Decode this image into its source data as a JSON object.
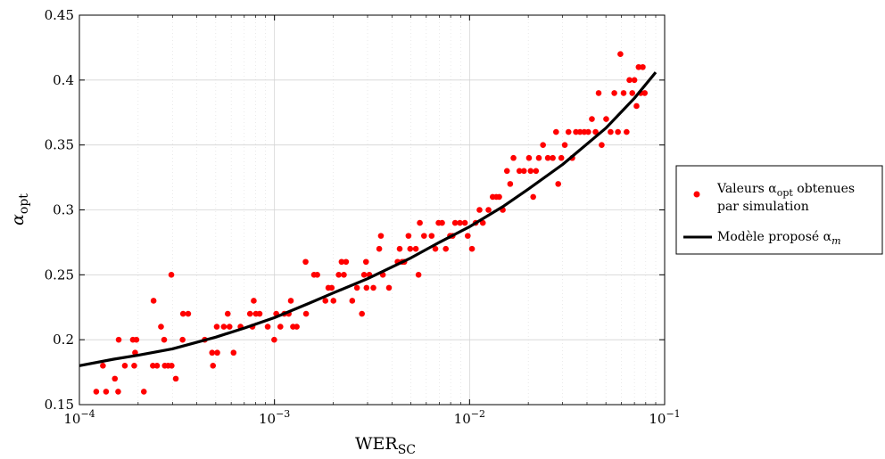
{
  "chart_data": {
    "type": "scatter",
    "xscale": "log",
    "xlim": [
      0.0001,
      0.1
    ],
    "ylim": [
      0.15,
      0.45
    ],
    "xticks": [
      {
        "value": 0.0001,
        "base": "10",
        "exp": "−4"
      },
      {
        "value": 0.001,
        "base": "10",
        "exp": "−3"
      },
      {
        "value": 0.01,
        "base": "10",
        "exp": "−2"
      },
      {
        "value": 0.1,
        "base": "10",
        "exp": "−1"
      }
    ],
    "yticks": [
      {
        "value": 0.15,
        "label": "0.15"
      },
      {
        "value": 0.2,
        "label": "0.2"
      },
      {
        "value": 0.25,
        "label": "0.25"
      },
      {
        "value": 0.3,
        "label": "0.3"
      },
      {
        "value": 0.35,
        "label": "0.35"
      },
      {
        "value": 0.4,
        "label": "0.4"
      },
      {
        "value": 0.45,
        "label": "0.45"
      }
    ],
    "xlabel": {
      "main": "WER",
      "sub": "SC"
    },
    "ylabel": {
      "main": "α",
      "sub": "opt"
    },
    "grid": true,
    "legend_position": "outside-right",
    "legend": {
      "scatter": {
        "pre": "Valeurs α",
        "sub": "opt",
        "post": " obtenues",
        "line2": "par simulation"
      },
      "line": {
        "pre": "Modèle proposé α",
        "sub": "m"
      }
    },
    "colors": {
      "scatter": "#ff0000",
      "line": "#000000"
    },
    "series": [
      {
        "kind": "scatter",
        "points": [
          [
            0.000122,
            0.16
          ],
          [
            0.000132,
            0.18
          ],
          [
            0.000137,
            0.16
          ],
          [
            0.000152,
            0.17
          ],
          [
            0.000158,
            0.16
          ],
          [
            0.000159,
            0.2
          ],
          [
            0.000171,
            0.18
          ],
          [
            0.000188,
            0.2
          ],
          [
            0.000191,
            0.18
          ],
          [
            0.000193,
            0.19
          ],
          [
            0.000196,
            0.2
          ],
          [
            0.000214,
            0.16
          ],
          [
            0.000238,
            0.18
          ],
          [
            0.00024,
            0.23
          ],
          [
            0.00025,
            0.18
          ],
          [
            0.000262,
            0.21
          ],
          [
            0.000272,
            0.2
          ],
          [
            0.000274,
            0.18
          ],
          [
            0.000285,
            0.18
          ],
          [
            0.000296,
            0.25
          ],
          [
            0.000297,
            0.18
          ],
          [
            0.000312,
            0.17
          ],
          [
            0.000338,
            0.2
          ],
          [
            0.00034,
            0.22
          ],
          [
            0.000361,
            0.22
          ],
          [
            0.000439,
            0.2
          ],
          [
            0.000479,
            0.19
          ],
          [
            0.000484,
            0.18
          ],
          [
            0.000506,
            0.21
          ],
          [
            0.000509,
            0.19
          ],
          [
            0.00055,
            0.21
          ],
          [
            0.000576,
            0.22
          ],
          [
            0.000588,
            0.21
          ],
          [
            0.000617,
            0.19
          ],
          [
            0.00067,
            0.21
          ],
          [
            0.000749,
            0.22
          ],
          [
            0.000771,
            0.21
          ],
          [
            0.000783,
            0.23
          ],
          [
            0.000803,
            0.22
          ],
          [
            0.000839,
            0.22
          ],
          [
            0.000923,
            0.21
          ],
          [
            0.000997,
            0.2
          ],
          [
            0.001021,
            0.22
          ],
          [
            0.001072,
            0.21
          ],
          [
            0.001123,
            0.22
          ],
          [
            0.001183,
            0.22
          ],
          [
            0.001213,
            0.23
          ],
          [
            0.001245,
            0.21
          ],
          [
            0.0013,
            0.21
          ],
          [
            0.001444,
            0.26
          ],
          [
            0.001452,
            0.22
          ],
          [
            0.001595,
            0.25
          ],
          [
            0.001657,
            0.25
          ],
          [
            0.001824,
            0.23
          ],
          [
            0.001889,
            0.24
          ],
          [
            0.001965,
            0.24
          ],
          [
            0.002006,
            0.23
          ],
          [
            0.002134,
            0.25
          ],
          [
            0.002208,
            0.26
          ],
          [
            0.002269,
            0.25
          ],
          [
            0.002327,
            0.26
          ],
          [
            0.002504,
            0.23
          ],
          [
            0.002648,
            0.24
          ],
          [
            0.002807,
            0.22
          ],
          [
            0.00288,
            0.25
          ],
          [
            0.002946,
            0.26
          ],
          [
            0.002963,
            0.24
          ],
          [
            0.003064,
            0.25
          ],
          [
            0.003214,
            0.24
          ],
          [
            0.003444,
            0.27
          ],
          [
            0.003512,
            0.28
          ],
          [
            0.003594,
            0.25
          ],
          [
            0.003863,
            0.24
          ],
          [
            0.004275,
            0.26
          ],
          [
            0.004383,
            0.27
          ],
          [
            0.004516,
            0.26
          ],
          [
            0.004631,
            0.26
          ],
          [
            0.004864,
            0.28
          ],
          [
            0.004962,
            0.27
          ],
          [
            0.005303,
            0.27
          ],
          [
            0.005475,
            0.25
          ],
          [
            0.00556,
            0.29
          ],
          [
            0.005844,
            0.28
          ],
          [
            0.00639,
            0.28
          ],
          [
            0.006681,
            0.27
          ],
          [
            0.006937,
            0.29
          ],
          [
            0.007228,
            0.29
          ],
          [
            0.007554,
            0.27
          ],
          [
            0.007946,
            0.28
          ],
          [
            0.008184,
            0.28
          ],
          [
            0.008433,
            0.29
          ],
          [
            0.008926,
            0.29
          ],
          [
            0.009464,
            0.29
          ],
          [
            0.009787,
            0.28
          ],
          [
            0.01029,
            0.27
          ],
          [
            0.010743,
            0.29
          ],
          [
            0.011247,
            0.3
          ],
          [
            0.011697,
            0.29
          ],
          [
            0.012504,
            0.3
          ],
          [
            0.013137,
            0.31
          ],
          [
            0.01371,
            0.31
          ],
          [
            0.014191,
            0.31
          ],
          [
            0.014801,
            0.3
          ],
          [
            0.015549,
            0.33
          ],
          [
            0.016155,
            0.32
          ],
          [
            0.016793,
            0.34
          ],
          [
            0.018009,
            0.33
          ],
          [
            0.019002,
            0.33
          ],
          [
            0.02017,
            0.34
          ],
          [
            0.02056,
            0.33
          ],
          [
            0.021196,
            0.31
          ],
          [
            0.021911,
            0.33
          ],
          [
            0.022655,
            0.34
          ],
          [
            0.023799,
            0.35
          ],
          [
            0.025196,
            0.34
          ],
          [
            0.026707,
            0.34
          ],
          [
            0.027766,
            0.36
          ],
          [
            0.028476,
            0.32
          ],
          [
            0.02954,
            0.34
          ],
          [
            0.030768,
            0.35
          ],
          [
            0.032152,
            0.36
          ],
          [
            0.033612,
            0.34
          ],
          [
            0.035105,
            0.36
          ],
          [
            0.036839,
            0.36
          ],
          [
            0.038734,
            0.36
          ],
          [
            0.040576,
            0.36
          ],
          [
            0.042377,
            0.37
          ],
          [
            0.044253,
            0.36
          ],
          [
            0.045887,
            0.39
          ],
          [
            0.047563,
            0.35
          ],
          [
            0.050149,
            0.37
          ],
          [
            0.052839,
            0.36
          ],
          [
            0.055219,
            0.39
          ],
          [
            0.057627,
            0.36
          ],
          [
            0.059313,
            0.42
          ],
          [
            0.061617,
            0.39
          ],
          [
            0.063817,
            0.36
          ],
          [
            0.066002,
            0.4
          ],
          [
            0.068254,
            0.39
          ],
          [
            0.069992,
            0.4
          ],
          [
            0.071758,
            0.38
          ],
          [
            0.073553,
            0.41
          ],
          [
            0.075374,
            0.39
          ],
          [
            0.077224,
            0.41
          ],
          [
            0.079099,
            0.39
          ]
        ]
      },
      {
        "kind": "line",
        "points": [
          [
            0.0001,
            0.18
          ],
          [
            0.00015,
            0.185
          ],
          [
            0.0002,
            0.188
          ],
          [
            0.0003,
            0.193
          ],
          [
            0.0005,
            0.202
          ],
          [
            0.0007,
            0.209
          ],
          [
            0.001,
            0.217
          ],
          [
            0.0015,
            0.228
          ],
          [
            0.002,
            0.236
          ],
          [
            0.003,
            0.247
          ],
          [
            0.005,
            0.263
          ],
          [
            0.007,
            0.275
          ],
          [
            0.01,
            0.287
          ],
          [
            0.015,
            0.303
          ],
          [
            0.02,
            0.316
          ],
          [
            0.03,
            0.335
          ],
          [
            0.05,
            0.363
          ],
          [
            0.07,
            0.386
          ],
          [
            0.09,
            0.406
          ]
        ]
      }
    ]
  }
}
